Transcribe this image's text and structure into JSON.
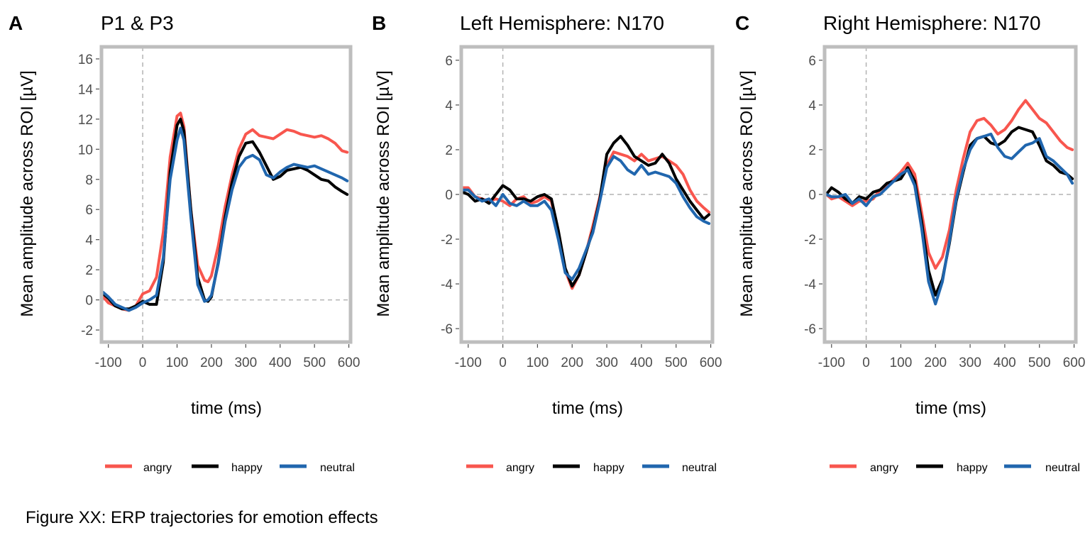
{
  "figure": {
    "caption": "Figure XX: ERP trajectories for emotion effects"
  },
  "colors": {
    "angry": "#f8564e",
    "happy": "#000000",
    "neutral": "#2066ae",
    "frame": "#bebebe",
    "reference_line": "#b3b3b3"
  },
  "chart_data": [
    {
      "type": "line",
      "panel_letter": "A",
      "title": "P1 & P3",
      "xlabel": "time (ms)",
      "ylabel": "Mean amplitude across ROI [µV]",
      "xlim": [
        -120,
        605
      ],
      "ylim": [
        -2.8,
        16.8
      ],
      "xticks": [
        -100,
        0,
        100,
        200,
        300,
        400,
        500,
        600
      ],
      "yticks": [
        -2,
        0,
        2,
        4,
        6,
        8,
        10,
        12,
        14,
        16
      ],
      "grid": false,
      "reference_lines": {
        "x": 0,
        "y": 0
      },
      "legend_position": "bottom",
      "x": [
        -115,
        -100,
        -80,
        -60,
        -40,
        -20,
        0,
        20,
        40,
        60,
        80,
        100,
        110,
        120,
        140,
        160,
        180,
        190,
        200,
        220,
        240,
        260,
        280,
        300,
        320,
        340,
        360,
        380,
        400,
        420,
        440,
        460,
        480,
        500,
        520,
        540,
        560,
        580,
        595
      ],
      "series": [
        {
          "name": "angry",
          "values": [
            0.2,
            -0.2,
            -0.4,
            -0.6,
            -0.7,
            -0.4,
            0.4,
            0.6,
            1.5,
            4.5,
            9.5,
            12.2,
            12.4,
            11.5,
            6.0,
            2.3,
            1.3,
            1.2,
            1.6,
            3.6,
            6.2,
            8.3,
            10.0,
            11.0,
            11.3,
            10.9,
            10.8,
            10.7,
            11.0,
            11.3,
            11.2,
            11.0,
            10.9,
            10.8,
            10.9,
            10.7,
            10.4,
            9.9,
            9.8
          ]
        },
        {
          "name": "happy",
          "values": [
            0.4,
            0.1,
            -0.4,
            -0.6,
            -0.6,
            -0.4,
            -0.1,
            -0.3,
            -0.3,
            2.5,
            8.5,
            11.6,
            12.0,
            11.2,
            6.0,
            1.5,
            0.0,
            -0.1,
            0.2,
            2.5,
            5.5,
            7.8,
            9.5,
            10.4,
            10.5,
            9.8,
            8.9,
            8.0,
            8.2,
            8.6,
            8.7,
            8.8,
            8.6,
            8.3,
            8.0,
            7.9,
            7.5,
            7.2,
            7.0
          ]
        },
        {
          "name": "neutral",
          "values": [
            0.5,
            0.2,
            -0.3,
            -0.5,
            -0.7,
            -0.5,
            -0.2,
            0.0,
            0.3,
            2.8,
            8.0,
            10.6,
            11.4,
            10.6,
            5.5,
            1.0,
            -0.1,
            0.0,
            0.3,
            2.4,
            5.2,
            7.3,
            8.8,
            9.4,
            9.6,
            9.3,
            8.3,
            8.1,
            8.5,
            8.8,
            9.0,
            8.9,
            8.8,
            8.9,
            8.7,
            8.5,
            8.3,
            8.1,
            7.9
          ]
        }
      ]
    },
    {
      "type": "line",
      "panel_letter": "B",
      "title": "Left Hemisphere: N170",
      "xlabel": "time (ms)",
      "ylabel": "Mean amplitude across ROI [µV]",
      "xlim": [
        -120,
        605
      ],
      "ylim": [
        -6.6,
        6.6
      ],
      "xticks": [
        -100,
        0,
        100,
        200,
        300,
        400,
        500,
        600
      ],
      "yticks": [
        -6,
        -4,
        -2,
        0,
        2,
        4,
        6
      ],
      "grid": false,
      "reference_lines": {
        "x": 0,
        "y": 0
      },
      "legend_position": "bottom",
      "x": [
        -115,
        -100,
        -80,
        -60,
        -40,
        -20,
        0,
        20,
        40,
        60,
        80,
        100,
        120,
        140,
        160,
        180,
        200,
        220,
        240,
        260,
        280,
        300,
        320,
        340,
        360,
        380,
        400,
        420,
        440,
        460,
        480,
        500,
        520,
        540,
        560,
        580,
        595
      ],
      "series": [
        {
          "name": "angry",
          "values": [
            0.3,
            0.3,
            -0.1,
            -0.2,
            -0.3,
            -0.2,
            -0.3,
            -0.5,
            -0.2,
            -0.1,
            -0.4,
            -0.3,
            -0.1,
            -0.3,
            -1.8,
            -3.4,
            -4.2,
            -3.6,
            -2.6,
            -1.4,
            -0.1,
            1.3,
            1.9,
            1.8,
            1.7,
            1.5,
            1.8,
            1.5,
            1.6,
            1.7,
            1.5,
            1.3,
            0.9,
            0.2,
            -0.3,
            -0.6,
            -0.8
          ]
        },
        {
          "name": "happy",
          "values": [
            0.1,
            0.0,
            -0.3,
            -0.2,
            -0.4,
            0.0,
            0.4,
            0.2,
            -0.2,
            -0.2,
            -0.3,
            -0.1,
            0.0,
            -0.2,
            -1.6,
            -3.3,
            -4.1,
            -3.6,
            -2.6,
            -1.6,
            -0.2,
            1.8,
            2.3,
            2.6,
            2.2,
            1.7,
            1.5,
            1.3,
            1.4,
            1.8,
            1.4,
            0.7,
            0.2,
            -0.3,
            -0.7,
            -1.1,
            -0.9
          ]
        },
        {
          "name": "neutral",
          "values": [
            0.2,
            0.2,
            -0.1,
            -0.3,
            -0.2,
            -0.5,
            0.0,
            -0.4,
            -0.5,
            -0.3,
            -0.5,
            -0.5,
            -0.3,
            -0.7,
            -2.0,
            -3.5,
            -3.8,
            -3.3,
            -2.5,
            -1.7,
            -0.3,
            1.2,
            1.7,
            1.5,
            1.1,
            0.9,
            1.3,
            0.9,
            1.0,
            0.9,
            0.8,
            0.5,
            -0.1,
            -0.6,
            -1.0,
            -1.2,
            -1.3
          ]
        }
      ]
    },
    {
      "type": "line",
      "panel_letter": "C",
      "title": "Right Hemisphere: N170",
      "xlabel": "time (ms)",
      "ylabel": "Mean amplitude across ROI [µV]",
      "xlim": [
        -120,
        605
      ],
      "ylim": [
        -6.6,
        6.6
      ],
      "xticks": [
        -100,
        0,
        100,
        200,
        300,
        400,
        500,
        600
      ],
      "yticks": [
        -6,
        -4,
        -2,
        0,
        2,
        4,
        6
      ],
      "grid": false,
      "reference_lines": {
        "x": 0,
        "y": 0
      },
      "legend_position": "bottom",
      "x": [
        -115,
        -100,
        -80,
        -60,
        -40,
        -20,
        0,
        20,
        40,
        60,
        80,
        100,
        120,
        140,
        160,
        180,
        200,
        220,
        240,
        260,
        280,
        300,
        320,
        340,
        360,
        380,
        400,
        420,
        440,
        460,
        480,
        500,
        520,
        540,
        560,
        580,
        595
      ],
      "series": [
        {
          "name": "angry",
          "values": [
            0.0,
            -0.2,
            -0.1,
            -0.3,
            -0.5,
            -0.3,
            -0.3,
            -0.2,
            0.2,
            0.4,
            0.7,
            1.0,
            1.4,
            0.9,
            -0.8,
            -2.6,
            -3.3,
            -2.8,
            -1.6,
            0.2,
            1.6,
            2.8,
            3.3,
            3.4,
            3.1,
            2.7,
            2.9,
            3.3,
            3.8,
            4.2,
            3.8,
            3.4,
            3.2,
            2.8,
            2.4,
            2.1,
            2.0
          ]
        },
        {
          "name": "happy",
          "values": [
            0.0,
            0.3,
            0.1,
            -0.2,
            -0.4,
            -0.1,
            -0.2,
            0.1,
            0.2,
            0.5,
            0.6,
            0.7,
            1.2,
            0.6,
            -1.2,
            -3.4,
            -4.5,
            -3.8,
            -2.2,
            -0.3,
            1.0,
            2.2,
            2.5,
            2.6,
            2.3,
            2.2,
            2.4,
            2.8,
            3.0,
            2.9,
            2.8,
            2.2,
            1.5,
            1.3,
            1.0,
            0.9,
            0.7
          ]
        },
        {
          "name": "neutral",
          "values": [
            0.0,
            -0.1,
            -0.1,
            0.0,
            -0.4,
            -0.2,
            -0.5,
            -0.1,
            0.0,
            0.3,
            0.6,
            0.9,
            1.1,
            0.4,
            -1.5,
            -3.9,
            -4.9,
            -3.9,
            -2.1,
            -0.2,
            1.1,
            2.0,
            2.5,
            2.6,
            2.7,
            2.1,
            1.7,
            1.6,
            1.9,
            2.2,
            2.3,
            2.5,
            1.7,
            1.5,
            1.2,
            0.9,
            0.5
          ]
        }
      ]
    }
  ]
}
